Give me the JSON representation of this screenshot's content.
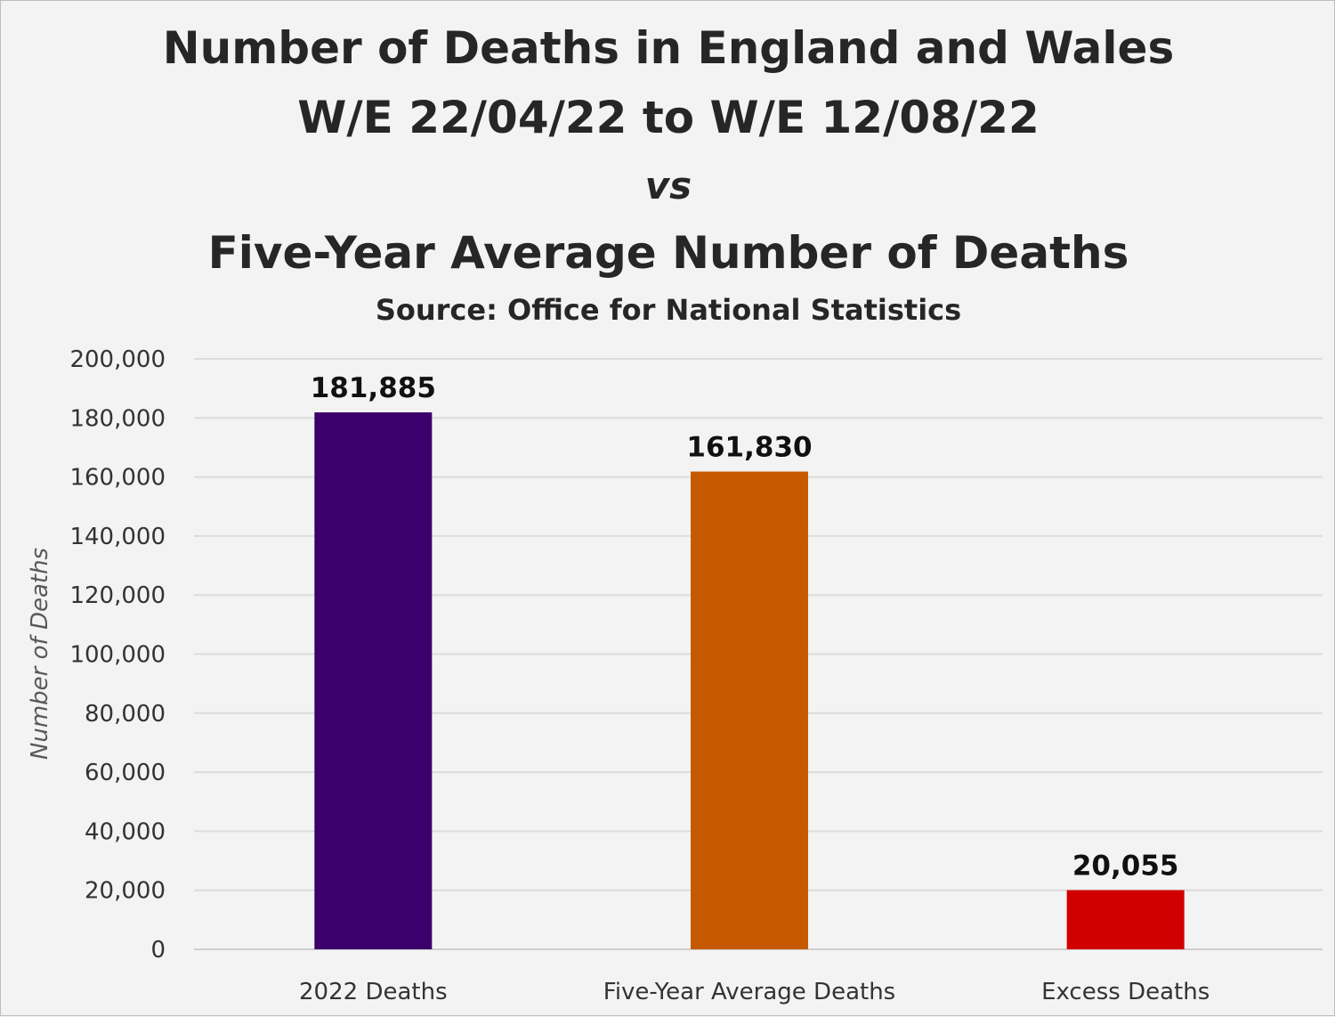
{
  "chart_data": {
    "type": "bar",
    "title_lines": [
      "Number of Deaths in England and Wales",
      "W/E 22/04/22 to W/E 12/08/22",
      "vs",
      "Five-Year Average Number of Deaths"
    ],
    "subtitle": "Source: Office for National Statistics",
    "xlabel": "",
    "ylabel": "Number of Deaths",
    "ylim": [
      0,
      200000
    ],
    "yticks": [
      0,
      20000,
      40000,
      60000,
      80000,
      100000,
      120000,
      140000,
      160000,
      180000,
      200000
    ],
    "ytick_labels": [
      "0",
      "20,000",
      "40,000",
      "60,000",
      "80,000",
      "100,000",
      "120,000",
      "140,000",
      "160,000",
      "180,000",
      "200,000"
    ],
    "categories": [
      "2022 Deaths",
      "Five-Year Average Deaths",
      "Excess Deaths"
    ],
    "values": [
      181885,
      161830,
      20055
    ],
    "data_labels": [
      "181,885",
      "161,830",
      "20,055"
    ],
    "colors": [
      "#3b006b",
      "#c55a00",
      "#d10000"
    ],
    "grid": true,
    "legend": "none"
  }
}
